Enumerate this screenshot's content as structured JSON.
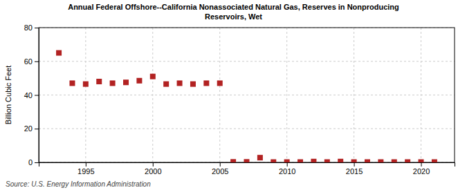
{
  "chart_data": {
    "type": "scatter",
    "title": "Annual Federal Offshore--California Nonassociated Natural Gas, Reserves in Nonproducing\nReservoirs, Wet",
    "ylabel": "Billion Cubic Feet",
    "annotations": [
      "Source: U.S. Energy Information Administration"
    ],
    "x": [
      1993,
      1994,
      1995,
      1996,
      1997,
      1998,
      1999,
      2000,
      2001,
      2002,
      2003,
      2004,
      2005,
      2006,
      2007,
      2008,
      2009,
      2010,
      2011,
      2012,
      2013,
      2014,
      2015,
      2016,
      2017,
      2018,
      2019,
      2020,
      2021
    ],
    "values": [
      65.0,
      47.0,
      46.5,
      48.0,
      47.0,
      47.5,
      48.5,
      51.0,
      46.5,
      47.0,
      46.5,
      47.0,
      47.0,
      0.3,
      0.3,
      2.8,
      0.2,
      0.2,
      0.2,
      0.5,
      0.2,
      0.5,
      0.2,
      0.2,
      0.2,
      0.2,
      0.2,
      0.2,
      0.2
    ],
    "color": "#b22222",
    "marker": "square",
    "xlim": [
      1991.5,
      2022.5
    ],
    "xticks": [
      1995,
      2000,
      2005,
      2010,
      2015,
      2020
    ],
    "ylim": [
      0,
      80
    ],
    "yticks": [
      0,
      20,
      40,
      60,
      80
    ],
    "grid": true
  }
}
